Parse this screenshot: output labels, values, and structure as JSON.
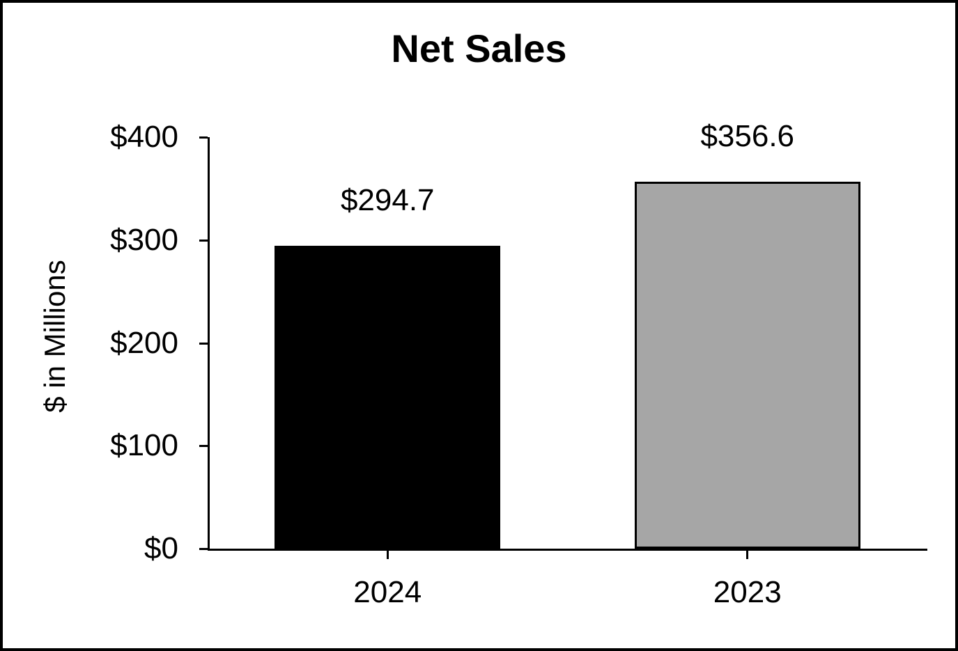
{
  "title": "Net Sales",
  "chart_data": {
    "type": "bar",
    "title": "Net Sales",
    "xlabel": "",
    "ylabel": "$ in Millions",
    "categories": [
      "2024",
      "2023"
    ],
    "values": [
      294.7,
      356.6
    ],
    "bar_labels": [
      "$294.7",
      "$356.6"
    ],
    "bar_colors": [
      "#000000",
      "#A6A6A6"
    ],
    "bar_border_color": "#000000",
    "axis_color": "#000000",
    "ylim": [
      0,
      400
    ],
    "yticks": [
      0,
      100,
      200,
      300,
      400
    ],
    "ytick_labels": [
      "$0",
      "$100",
      "$200",
      "$300",
      "$400"
    ],
    "grid": false,
    "legend": "none"
  }
}
